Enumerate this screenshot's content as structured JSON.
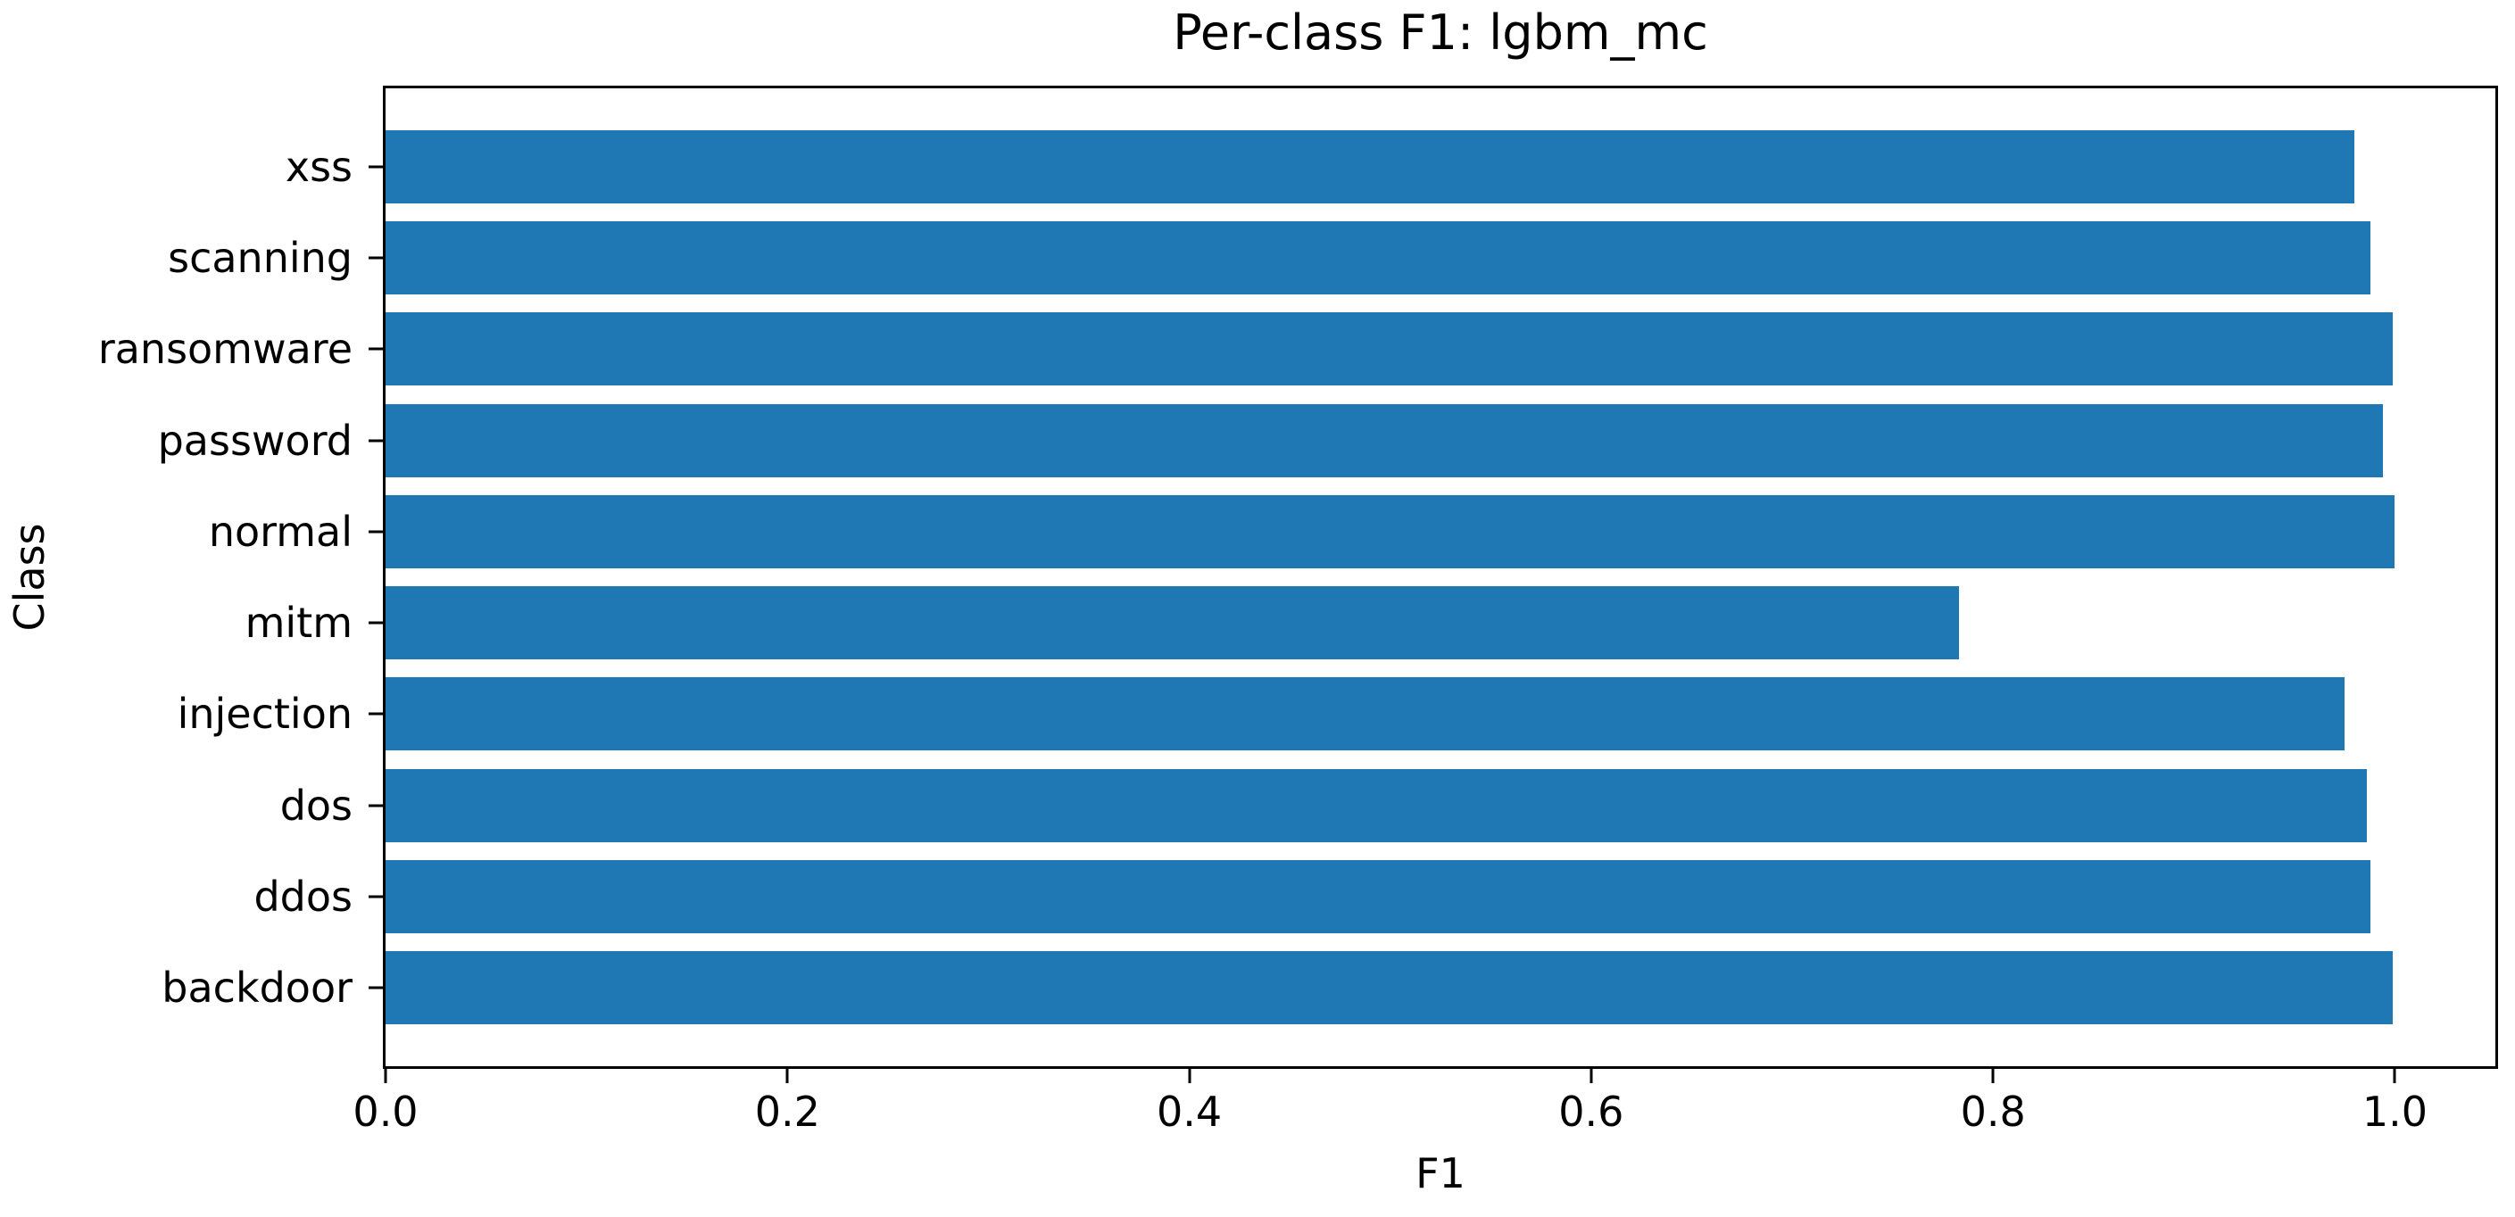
{
  "chart_data": {
    "type": "bar",
    "orientation": "horizontal",
    "title": "Per-class F1: lgbm_mc",
    "xlabel": "F1",
    "ylabel": "Class",
    "categories_order": "top-to-bottom",
    "categories": [
      "xss",
      "scanning",
      "ransomware",
      "password",
      "normal",
      "mitm",
      "injection",
      "dos",
      "ddos",
      "backdoor"
    ],
    "values": [
      0.98,
      0.988,
      0.999,
      0.994,
      1.0,
      0.783,
      0.975,
      0.986,
      0.988,
      0.999
    ],
    "xlim": [
      0,
      1.05
    ],
    "xticks": [
      0,
      0.2,
      0.4,
      0.6,
      0.8,
      1.0
    ],
    "bar_color": "#1f77b4",
    "background_color": "#ffffff",
    "text_color": "#000000",
    "grid": false,
    "legend": "none"
  }
}
